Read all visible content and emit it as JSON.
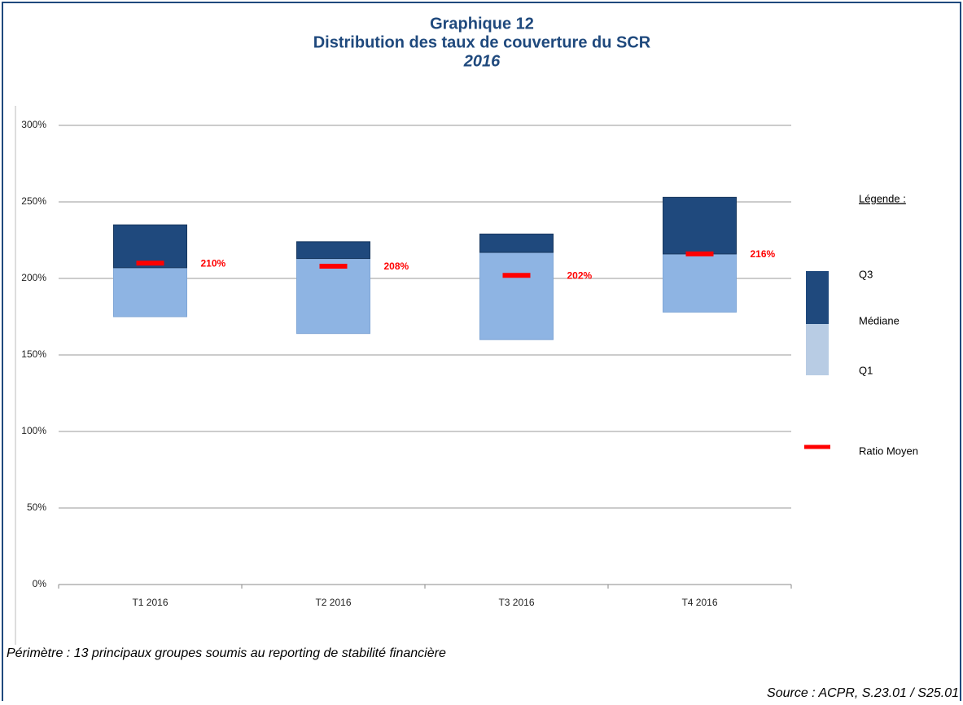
{
  "chart_data": {
    "type": "box",
    "title": "Graphique 12",
    "subtitle": "Distribution des taux de couverture du SCR",
    "period": "2016",
    "categories": [
      "T1 2016",
      "T2 2016",
      "T3 2016",
      "T4 2016"
    ],
    "series": [
      {
        "name": "Q1",
        "color": "#8eb4e3",
        "values": [
          175,
          164,
          160,
          178
        ]
      },
      {
        "name": "Médiane",
        "color": "#8eb4e3",
        "values": [
          207,
          213,
          217,
          216
        ]
      },
      {
        "name": "Q3",
        "color": "#1f497d",
        "values": [
          235,
          224,
          229,
          253
        ]
      },
      {
        "name": "Ratio Moyen",
        "color": "#ff0000",
        "values": [
          210,
          208,
          202,
          216
        ],
        "value_labels": [
          "210%",
          "208%",
          "202%",
          "216%"
        ]
      }
    ],
    "ylim": [
      0,
      300
    ],
    "yticks": [
      {
        "value": 0,
        "label": "0%"
      },
      {
        "value": 50,
        "label": "50%"
      },
      {
        "value": 100,
        "label": "100%"
      },
      {
        "value": 150,
        "label": "150%"
      },
      {
        "value": 200,
        "label": "200%"
      },
      {
        "value": 250,
        "label": "250%"
      },
      {
        "value": 300,
        "label": "300%"
      }
    ],
    "grid": true,
    "legend_title": "Légende :",
    "legend_position": "right",
    "note": "Périmètre : 13 principaux groupes soumis au reporting de stabilité financière",
    "source": "Source : ACPR, S.23.01 / S25.01"
  }
}
